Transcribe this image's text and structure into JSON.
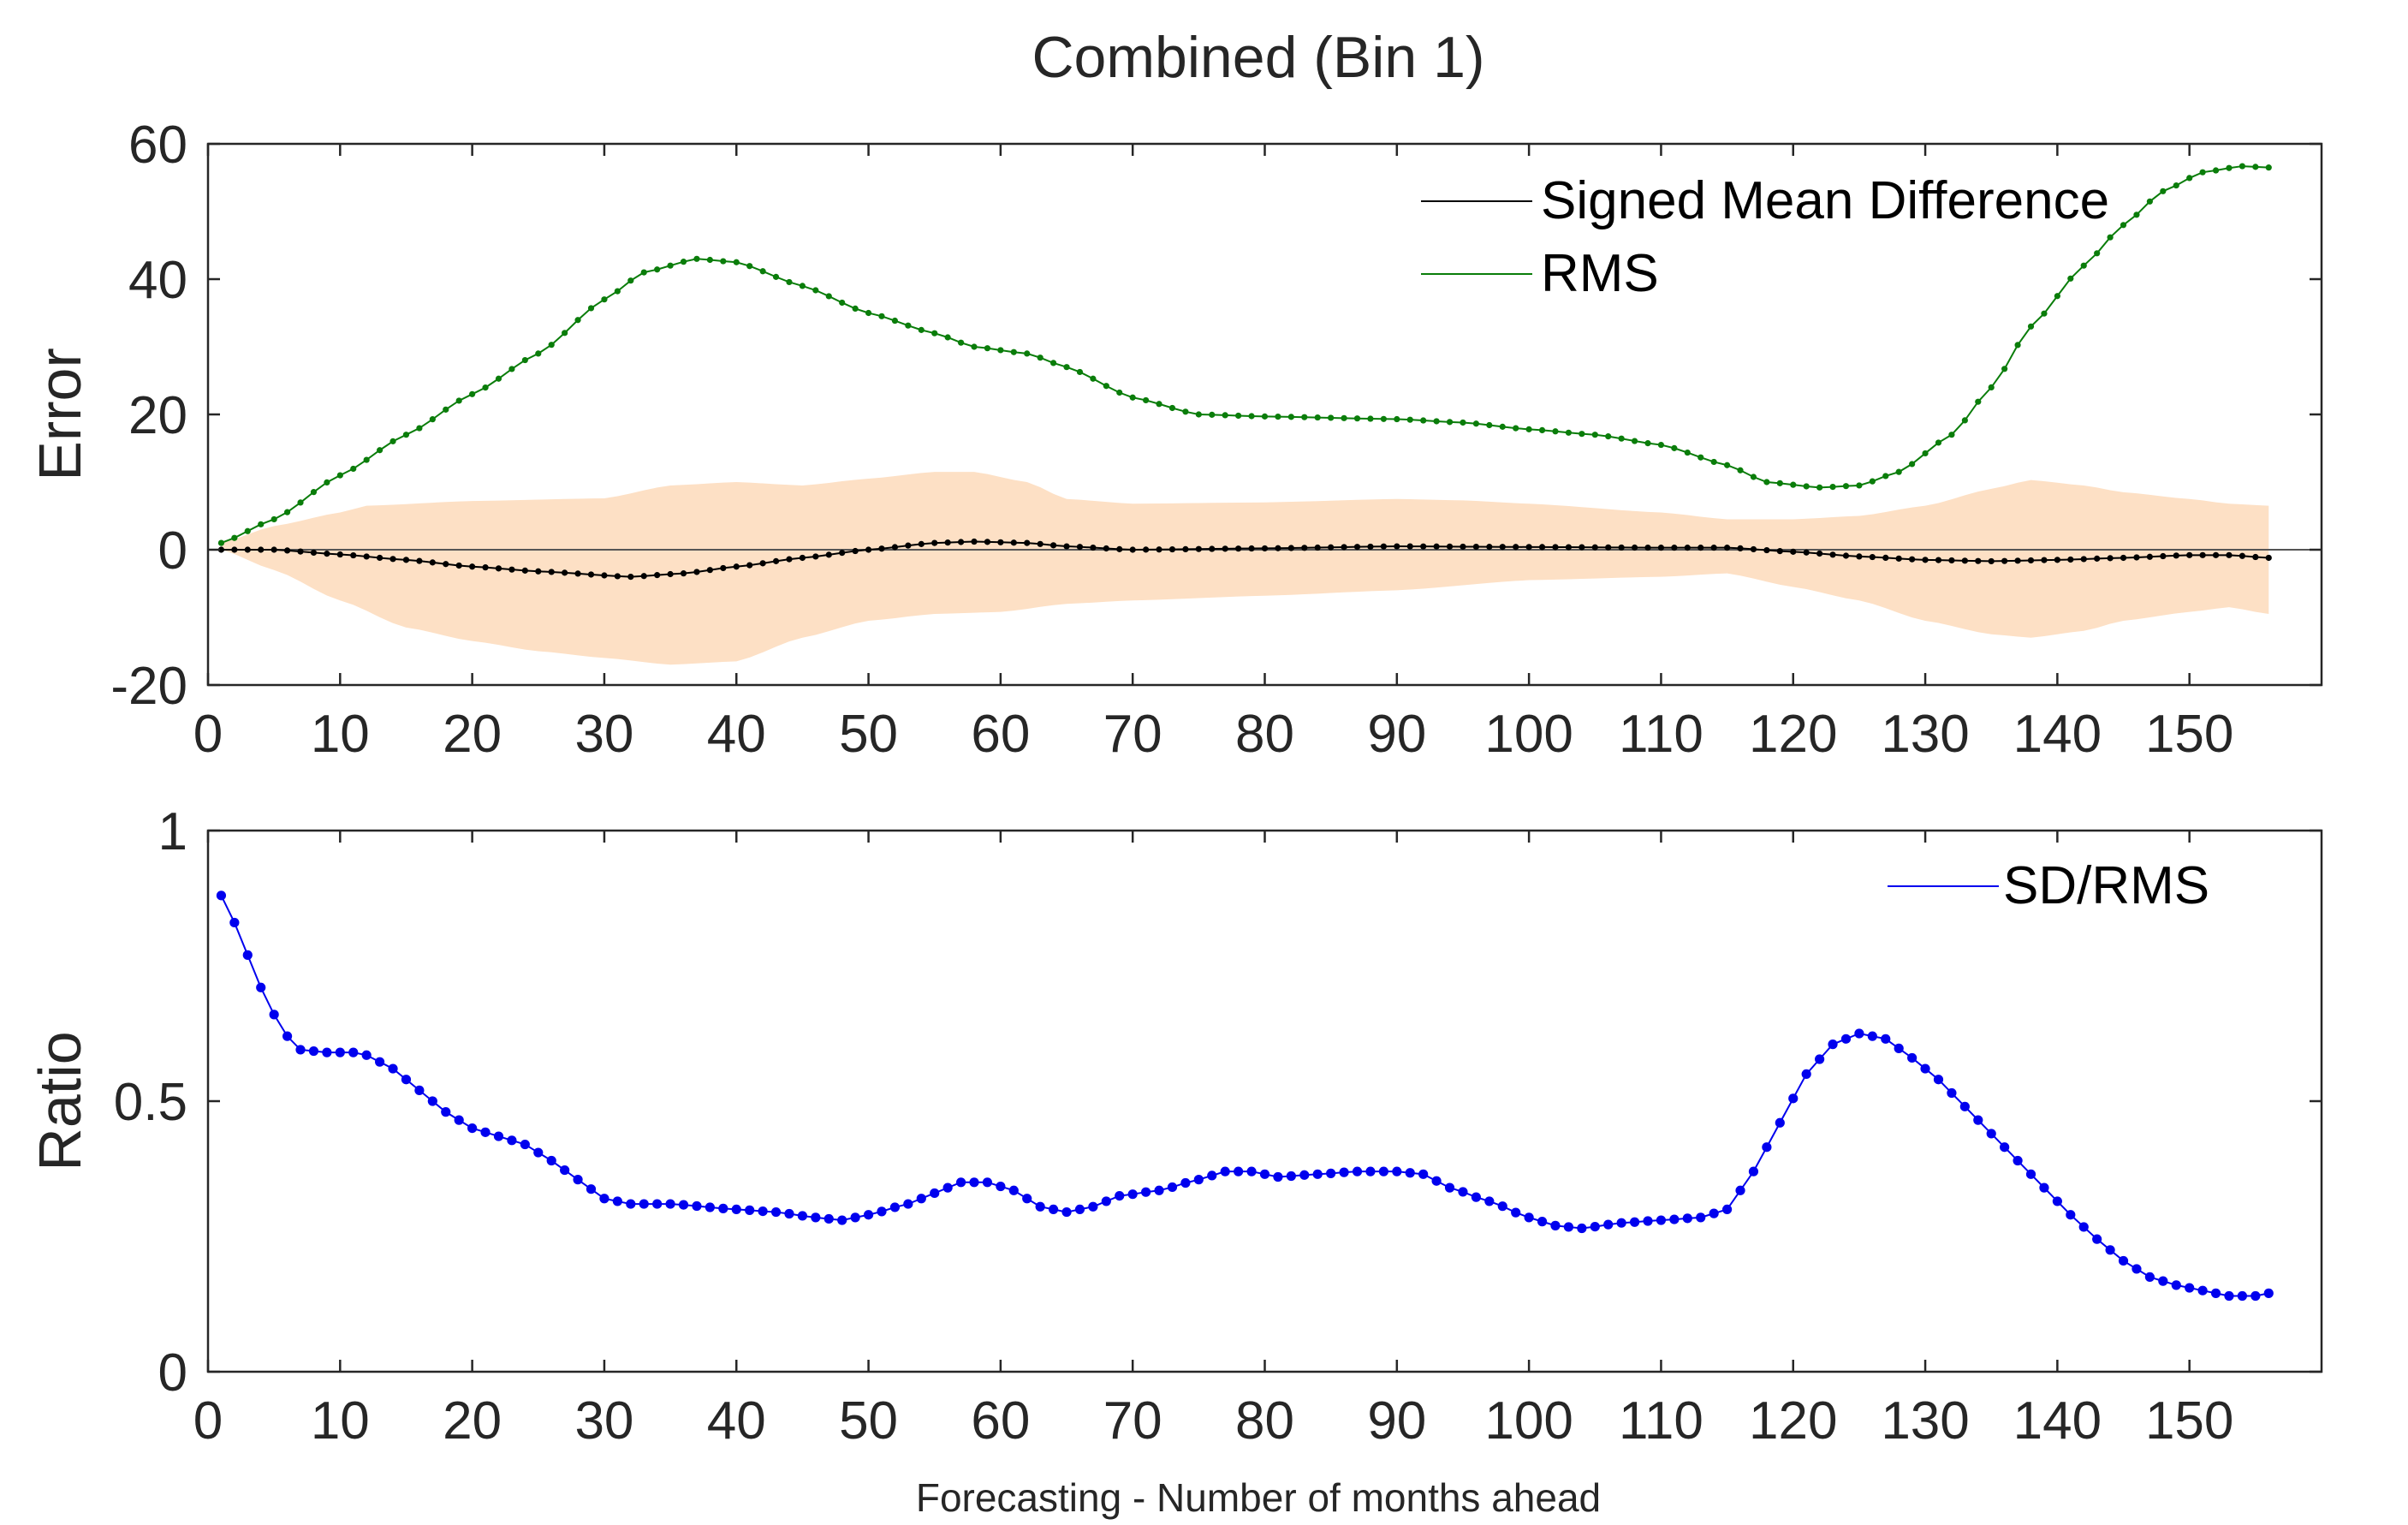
{
  "figure_title": "Combined (Bin 1)",
  "xlabel": "Forecasting - Number of months ahead",
  "chart_data": [
    {
      "type": "line",
      "name": "top-panel",
      "ylabel": "Error",
      "xlim": [
        0,
        160
      ],
      "ylim": [
        -20,
        60
      ],
      "xticks": [
        0,
        10,
        20,
        30,
        40,
        50,
        60,
        70,
        80,
        90,
        100,
        110,
        120,
        130,
        140,
        150
      ],
      "yticks": [
        -20,
        0,
        20,
        40,
        60
      ],
      "legend_position": "top-right",
      "zero_line": true,
      "x_range": [
        1,
        156
      ],
      "series": [
        {
          "name": "Signed Mean Difference",
          "color": "#000000",
          "keypoints": [
            [
              1,
              0
            ],
            [
              5,
              0
            ],
            [
              10,
              -0.7
            ],
            [
              15,
              -1.5
            ],
            [
              20,
              -2.5
            ],
            [
              25,
              -3.2
            ],
            [
              32,
              -4
            ],
            [
              36,
              -3.5
            ],
            [
              40,
              -2.5
            ],
            [
              45,
              -1.2
            ],
            [
              50,
              0
            ],
            [
              55,
              1
            ],
            [
              58,
              1.2
            ],
            [
              62,
              1
            ],
            [
              65,
              0.5
            ],
            [
              70,
              0
            ],
            [
              80,
              0.2
            ],
            [
              90,
              0.5
            ],
            [
              100,
              0.4
            ],
            [
              110,
              0.3
            ],
            [
              115,
              0.3
            ],
            [
              120,
              -0.3
            ],
            [
              125,
              -1
            ],
            [
              130,
              -1.5
            ],
            [
              135,
              -1.7
            ],
            [
              140,
              -1.5
            ],
            [
              145,
              -1.2
            ],
            [
              150,
              -0.8
            ],
            [
              153,
              -0.8
            ],
            [
              156,
              -1.2
            ]
          ]
        },
        {
          "name": "RMS",
          "color": "#0a7d0a",
          "keypoints": [
            [
              1,
              1
            ],
            [
              5,
              4.5
            ],
            [
              10,
              11
            ],
            [
              15,
              17
            ],
            [
              20,
              23
            ],
            [
              25,
              29
            ],
            [
              30,
              37
            ],
            [
              33,
              41
            ],
            [
              37,
              43
            ],
            [
              40,
              42.5
            ],
            [
              45,
              39
            ],
            [
              50,
              35
            ],
            [
              55,
              32
            ],
            [
              58,
              30
            ],
            [
              62,
              29
            ],
            [
              65,
              27
            ],
            [
              70,
              22.5
            ],
            [
              75,
              20
            ],
            [
              80,
              19.7
            ],
            [
              90,
              19.3
            ],
            [
              95,
              18.8
            ],
            [
              100,
              17.8
            ],
            [
              105,
              17
            ],
            [
              110,
              15.5
            ],
            [
              115,
              12.5
            ],
            [
              118,
              10
            ],
            [
              122,
              9.2
            ],
            [
              125,
              9.5
            ],
            [
              128,
              11.5
            ],
            [
              132,
              17
            ],
            [
              135,
              24
            ],
            [
              138,
              33
            ],
            [
              142,
              42
            ],
            [
              145,
              48
            ],
            [
              148,
              53
            ],
            [
              151,
              55.8
            ],
            [
              154,
              56.7
            ],
            [
              156,
              56.5
            ]
          ]
        }
      ],
      "band": {
        "color": "#fde0c5",
        "upper": [
          [
            1,
            1
          ],
          [
            5,
            3.5
          ],
          [
            10,
            5.5
          ],
          [
            12,
            6.5
          ],
          [
            20,
            7.2
          ],
          [
            30,
            7.6
          ],
          [
            35,
            9.5
          ],
          [
            40,
            10
          ],
          [
            45,
            9.5
          ],
          [
            50,
            10.5
          ],
          [
            55,
            11.5
          ],
          [
            58,
            11.5
          ],
          [
            62,
            10
          ],
          [
            65,
            7.5
          ],
          [
            70,
            6.8
          ],
          [
            80,
            7
          ],
          [
            90,
            7.5
          ],
          [
            95,
            7.3
          ],
          [
            100,
            6.8
          ],
          [
            110,
            5.5
          ],
          [
            115,
            4.5
          ],
          [
            120,
            4.5
          ],
          [
            125,
            5
          ],
          [
            130,
            6.5
          ],
          [
            135,
            9
          ],
          [
            138,
            10.3
          ],
          [
            142,
            9.5
          ],
          [
            145,
            8.5
          ],
          [
            150,
            7.5
          ],
          [
            153,
            6.8
          ],
          [
            156,
            6.5
          ]
        ],
        "lower": [
          [
            1,
            0
          ],
          [
            5,
            -3
          ],
          [
            10,
            -7.5
          ],
          [
            15,
            -11.5
          ],
          [
            20,
            -13.5
          ],
          [
            25,
            -15
          ],
          [
            30,
            -16
          ],
          [
            35,
            -17
          ],
          [
            40,
            -16.5
          ],
          [
            45,
            -13
          ],
          [
            50,
            -10.5
          ],
          [
            55,
            -9.5
          ],
          [
            60,
            -9.2
          ],
          [
            65,
            -8
          ],
          [
            70,
            -7.5
          ],
          [
            80,
            -6.8
          ],
          [
            90,
            -6
          ],
          [
            100,
            -4.5
          ],
          [
            110,
            -4
          ],
          [
            115,
            -3.5
          ],
          [
            120,
            -5.5
          ],
          [
            125,
            -7.5
          ],
          [
            130,
            -10.5
          ],
          [
            135,
            -12.5
          ],
          [
            138,
            -13
          ],
          [
            142,
            -12
          ],
          [
            145,
            -10.5
          ],
          [
            150,
            -9.2
          ],
          [
            153,
            -8.5
          ],
          [
            156,
            -9.5
          ]
        ]
      }
    },
    {
      "type": "line",
      "name": "bottom-panel",
      "ylabel": "Ratio",
      "xlim": [
        0,
        160
      ],
      "ylim": [
        0,
        1
      ],
      "xticks": [
        0,
        10,
        20,
        30,
        40,
        50,
        60,
        70,
        80,
        90,
        100,
        110,
        120,
        130,
        140,
        150
      ],
      "yticks": [
        0,
        0.5,
        1
      ],
      "legend_position": "top-right",
      "x_range": [
        1,
        156
      ],
      "series": [
        {
          "name": "SD/RMS",
          "color": "#0000ee",
          "keypoints": [
            [
              1,
              0.88
            ],
            [
              2,
              0.83
            ],
            [
              3,
              0.77
            ],
            [
              4,
              0.71
            ],
            [
              5,
              0.66
            ],
            [
              6,
              0.62
            ],
            [
              7,
              0.595
            ],
            [
              9,
              0.59
            ],
            [
              11,
              0.59
            ],
            [
              12,
              0.585
            ],
            [
              14,
              0.56
            ],
            [
              16,
              0.52
            ],
            [
              18,
              0.48
            ],
            [
              20,
              0.45
            ],
            [
              22,
              0.435
            ],
            [
              24,
              0.42
            ],
            [
              26,
              0.39
            ],
            [
              28,
              0.355
            ],
            [
              30,
              0.32
            ],
            [
              32,
              0.31
            ],
            [
              35,
              0.31
            ],
            [
              40,
              0.3
            ],
            [
              43,
              0.295
            ],
            [
              46,
              0.285
            ],
            [
              48,
              0.28
            ],
            [
              50,
              0.29
            ],
            [
              53,
              0.31
            ],
            [
              55,
              0.33
            ],
            [
              57,
              0.35
            ],
            [
              59,
              0.35
            ],
            [
              61,
              0.335
            ],
            [
              63,
              0.305
            ],
            [
              65,
              0.295
            ],
            [
              67,
              0.305
            ],
            [
              69,
              0.325
            ],
            [
              72,
              0.335
            ],
            [
              75,
              0.355
            ],
            [
              77,
              0.37
            ],
            [
              79,
              0.37
            ],
            [
              81,
              0.36
            ],
            [
              84,
              0.365
            ],
            [
              87,
              0.37
            ],
            [
              90,
              0.37
            ],
            [
              92,
              0.365
            ],
            [
              94,
              0.34
            ],
            [
              97,
              0.315
            ],
            [
              100,
              0.285
            ],
            [
              102,
              0.27
            ],
            [
              104,
              0.265
            ],
            [
              107,
              0.275
            ],
            [
              110,
              0.28
            ],
            [
              113,
              0.285
            ],
            [
              115,
              0.3
            ],
            [
              117,
              0.37
            ],
            [
              119,
              0.46
            ],
            [
              121,
              0.55
            ],
            [
              123,
              0.605
            ],
            [
              125,
              0.625
            ],
            [
              127,
              0.615
            ],
            [
              129,
              0.58
            ],
            [
              131,
              0.54
            ],
            [
              133,
              0.49
            ],
            [
              135,
              0.44
            ],
            [
              137,
              0.39
            ],
            [
              139,
              0.34
            ],
            [
              141,
              0.29
            ],
            [
              143,
              0.245
            ],
            [
              145,
              0.205
            ],
            [
              147,
              0.175
            ],
            [
              149,
              0.16
            ],
            [
              151,
              0.15
            ],
            [
              153,
              0.14
            ],
            [
              155,
              0.14
            ],
            [
              156,
              0.145
            ]
          ]
        }
      ]
    }
  ]
}
